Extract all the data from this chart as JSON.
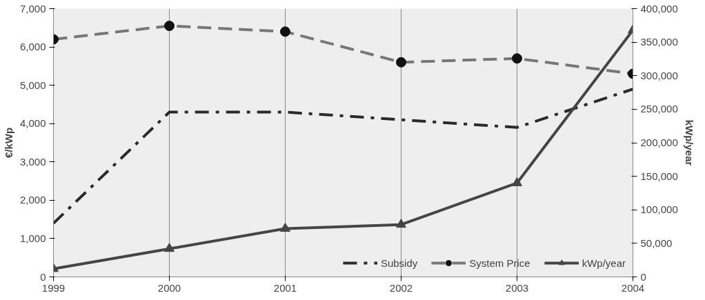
{
  "chart_data": {
    "type": "line",
    "ylabel": "€/kWp",
    "y2label": "kWp/year",
    "x": [
      1999,
      2000,
      2001,
      2002,
      2003,
      2004
    ],
    "xlim": [
      1999,
      2004
    ],
    "xticks": [
      1999,
      2000,
      2001,
      2002,
      2003,
      2004
    ],
    "ylim": [
      0,
      7000
    ],
    "yticks": [
      {
        "value": 0,
        "label": "0"
      },
      {
        "value": 1000,
        "label": "1,000"
      },
      {
        "value": 2000,
        "label": "2,000"
      },
      {
        "value": 3000,
        "label": "3,000"
      },
      {
        "value": 4000,
        "label": "4,000"
      },
      {
        "value": 5000,
        "label": "5,000"
      },
      {
        "value": 6000,
        "label": "6,000"
      },
      {
        "value": 7000,
        "label": "7,000"
      }
    ],
    "y2lim": [
      0,
      400000
    ],
    "y2ticks": [
      {
        "value": 0,
        "label": "0"
      },
      {
        "value": 50000,
        "label": "50,000"
      },
      {
        "value": 100000,
        "label": "100,000"
      },
      {
        "value": 150000,
        "label": "150,000"
      },
      {
        "value": 200000,
        "label": "200,000"
      },
      {
        "value": 250000,
        "label": "250,000"
      },
      {
        "value": 300000,
        "label": "300,000"
      },
      {
        "value": 350000,
        "label": "350,000"
      },
      {
        "value": 400000,
        "label": "400,000"
      }
    ],
    "grid": "x",
    "legend": "bottom right",
    "series": [
      {
        "name": "Subsidy",
        "color": "#2a2a2a",
        "line_style": "dashdot",
        "marker": "none",
        "values": [
          1400,
          4300,
          4300,
          4100,
          3900,
          4900
        ]
      },
      {
        "name": "System Price",
        "color": "#777777",
        "line_style": "dashed",
        "marker": "circle",
        "values": [
          6200,
          6550,
          6400,
          5600,
          5700,
          5300
        ]
      },
      {
        "name": "kWp/year",
        "color": "#454545",
        "line_style": "solid",
        "marker": "triangle",
        "axis": "y2",
        "values": [
          12000,
          42000,
          72000,
          78000,
          140000,
          368000
        ]
      }
    ]
  }
}
